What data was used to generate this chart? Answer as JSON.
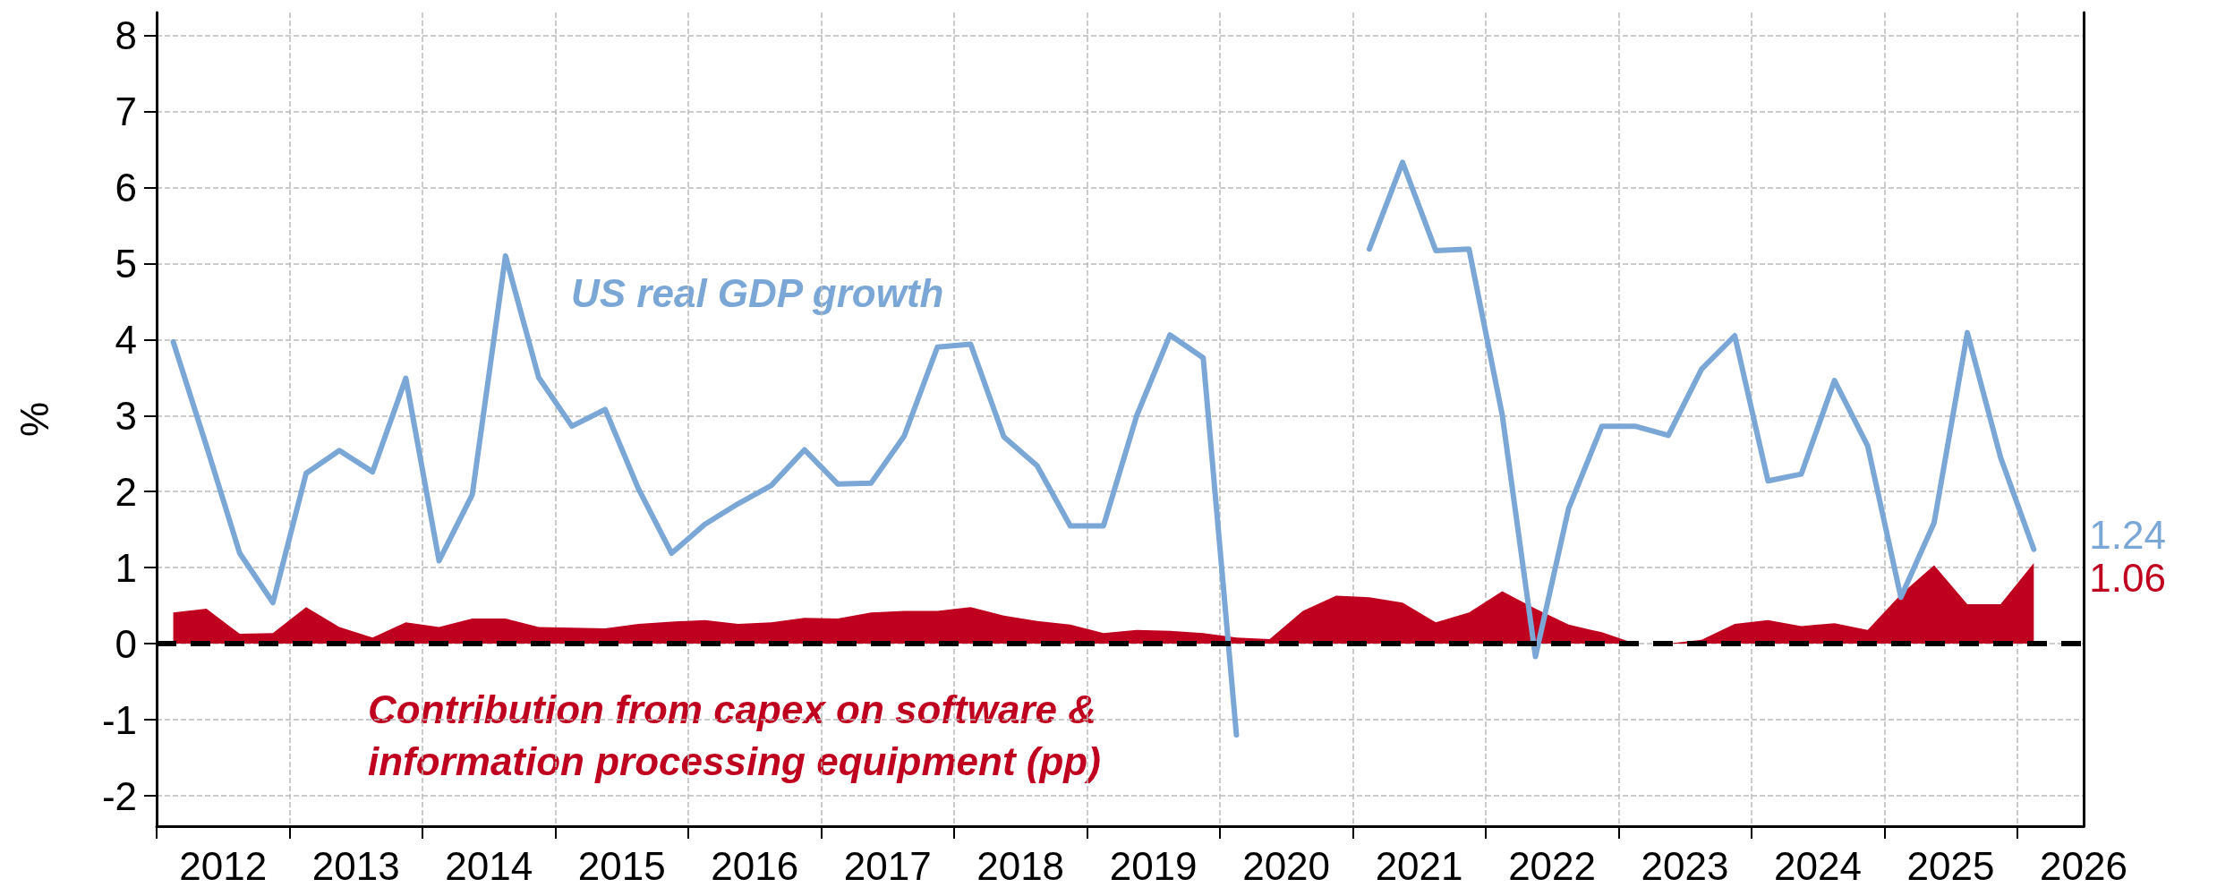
{
  "chart_data": {
    "type": "line",
    "ylabel": "%",
    "grid": true,
    "x": [
      2012.125,
      2012.375,
      2012.625,
      2012.875,
      2013.125,
      2013.375,
      2013.625,
      2013.875,
      2014.125,
      2014.375,
      2014.625,
      2014.875,
      2015.125,
      2015.375,
      2015.625,
      2015.875,
      2016.125,
      2016.375,
      2016.625,
      2016.875,
      2017.125,
      2017.375,
      2017.625,
      2017.875,
      2018.125,
      2018.375,
      2018.625,
      2018.875,
      2019.125,
      2019.375,
      2019.625,
      2019.875,
      2020.125,
      2020.375,
      2020.625,
      2020.875,
      2021.125,
      2021.375,
      2021.625,
      2021.875,
      2022.125,
      2022.375,
      2022.625,
      2022.875,
      2023.125,
      2023.375,
      2023.625,
      2023.875,
      2024.125,
      2024.375,
      2024.625,
      2024.875,
      2025.125,
      2025.375,
      2025.625,
      2025.875,
      2026.125
    ],
    "series": [
      {
        "name": "US real GDP growth",
        "type": "line",
        "color": "#7ba7d7",
        "values": [
          3.97,
          2.6,
          1.19,
          0.54,
          2.24,
          2.54,
          2.26,
          3.49,
          1.09,
          1.96,
          5.1,
          3.5,
          2.86,
          3.08,
          2.04,
          1.19,
          1.57,
          1.84,
          2.08,
          2.55,
          2.1,
          2.11,
          2.73,
          3.9,
          3.94,
          2.72,
          2.34,
          1.55,
          1.55,
          3.0,
          4.06,
          3.76,
          -1.2,
          null,
          null,
          null,
          5.19,
          6.33,
          5.17,
          5.19,
          3.01,
          -0.17,
          1.78,
          2.86,
          2.86,
          2.74,
          3.61,
          4.05,
          2.14,
          2.23,
          3.46,
          2.6,
          0.61,
          1.59,
          4.09,
          2.45,
          1.24
        ],
        "value_labels": [
          null,
          null,
          null,
          null,
          null,
          null,
          null,
          null,
          null,
          null,
          null,
          null,
          null,
          null,
          null,
          null,
          null,
          null,
          null,
          null,
          null,
          null,
          null,
          null,
          null,
          null,
          null,
          null,
          null,
          null,
          null,
          null,
          null,
          null,
          null,
          null,
          null,
          null,
          null,
          null,
          null,
          null,
          null,
          null,
          null,
          null,
          null,
          null,
          null,
          null,
          null,
          null,
          null,
          null,
          null,
          null,
          "1.24"
        ]
      },
      {
        "name": "Contribution from capex on software & information processing equipment (pp)",
        "type": "area",
        "color": "#c0001f",
        "values": [
          0.41,
          0.46,
          0.13,
          0.14,
          0.48,
          0.22,
          0.08,
          0.28,
          0.22,
          0.33,
          0.33,
          0.22,
          0.21,
          0.2,
          0.26,
          0.29,
          0.31,
          0.26,
          0.28,
          0.34,
          0.33,
          0.41,
          0.43,
          0.43,
          0.48,
          0.37,
          0.3,
          0.25,
          0.14,
          0.18,
          0.17,
          0.14,
          0.08,
          0.06,
          0.43,
          0.63,
          0.61,
          0.54,
          0.28,
          0.41,
          0.69,
          0.46,
          0.25,
          0.15,
          0,
          0,
          0.05,
          0.26,
          0.31,
          0.23,
          0.27,
          0.18,
          0.65,
          1.03,
          0.52,
          0.52,
          1.06
        ],
        "value_labels": [
          null,
          null,
          null,
          null,
          null,
          null,
          null,
          null,
          null,
          null,
          null,
          null,
          null,
          null,
          null,
          null,
          null,
          null,
          null,
          null,
          null,
          null,
          null,
          null,
          null,
          null,
          null,
          null,
          null,
          null,
          null,
          null,
          null,
          null,
          null,
          null,
          null,
          null,
          null,
          null,
          null,
          null,
          null,
          null,
          null,
          null,
          null,
          null,
          null,
          null,
          null,
          null,
          null,
          null,
          null,
          null,
          "1.06"
        ]
      }
    ],
    "xlim": [
      2012,
      2026.5
    ],
    "xticks": [
      {
        "value": 2012,
        "label": null
      },
      {
        "value": 2012.5,
        "label": "2012"
      },
      {
        "value": 2013,
        "label": null
      },
      {
        "value": 2013.5,
        "label": "2013"
      },
      {
        "value": 2014,
        "label": null
      },
      {
        "value": 2014.5,
        "label": "2014"
      },
      {
        "value": 2015,
        "label": null
      },
      {
        "value": 2015.5,
        "label": "2015"
      },
      {
        "value": 2016,
        "label": null
      },
      {
        "value": 2016.5,
        "label": "2016"
      },
      {
        "value": 2017,
        "label": null
      },
      {
        "value": 2017.5,
        "label": "2017"
      },
      {
        "value": 2018,
        "label": null
      },
      {
        "value": 2018.5,
        "label": "2018"
      },
      {
        "value": 2019,
        "label": null
      },
      {
        "value": 2019.5,
        "label": "2019"
      },
      {
        "value": 2020,
        "label": null
      },
      {
        "value": 2020.5,
        "label": "2020"
      },
      {
        "value": 2021,
        "label": null
      },
      {
        "value": 2021.5,
        "label": "2021"
      },
      {
        "value": 2022,
        "label": null
      },
      {
        "value": 2022.5,
        "label": "2022"
      },
      {
        "value": 2023,
        "label": null
      },
      {
        "value": 2023.5,
        "label": "2023"
      },
      {
        "value": 2024,
        "label": null
      },
      {
        "value": 2024.5,
        "label": "2024"
      },
      {
        "value": 2025,
        "label": null
      },
      {
        "value": 2025.5,
        "label": "2025"
      },
      {
        "value": 2026,
        "label": null
      },
      {
        "value": 2026.5,
        "label": "2026"
      }
    ],
    "ylim": [
      -2.4,
      8.3
    ],
    "yticks": [
      -2,
      -1,
      0,
      1,
      2,
      3,
      4,
      5,
      6,
      7,
      8
    ],
    "ref_lines": [
      {
        "axis": "y",
        "value": 0,
        "color": "#000000",
        "line_style": "dashed"
      }
    ]
  }
}
